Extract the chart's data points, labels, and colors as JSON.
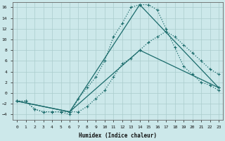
{
  "xlabel": "Humidex (Indice chaleur)",
  "bg_color": "#cce8ea",
  "grid_color": "#aacccc",
  "line_color": "#1a6b6b",
  "xlim": [
    -0.5,
    23.5
  ],
  "ylim": [
    -5,
    17
  ],
  "yticks": [
    -4,
    -2,
    0,
    2,
    4,
    6,
    8,
    10,
    12,
    14,
    16
  ],
  "xticks": [
    0,
    1,
    2,
    3,
    4,
    5,
    6,
    7,
    8,
    9,
    10,
    11,
    12,
    13,
    14,
    15,
    16,
    17,
    18,
    19,
    20,
    21,
    22,
    23
  ],
  "curve1_x": [
    0,
    1,
    2,
    3,
    4,
    5,
    6,
    7,
    8,
    9,
    10,
    11,
    12,
    13,
    14,
    15,
    16,
    17,
    18,
    19,
    20,
    21,
    22,
    23
  ],
  "curve1_y": [
    -1.5,
    -1.5,
    -3,
    -3.5,
    -3.5,
    -3.5,
    -4,
    -1,
    1,
    3,
    6,
    10.5,
    13,
    16,
    16.5,
    16.5,
    15.5,
    12,
    8.5,
    5,
    3.5,
    2,
    1.5,
    0.5
  ],
  "curve2_x": [
    0,
    1,
    2,
    3,
    4,
    5,
    6,
    7,
    8,
    9,
    10,
    11,
    12,
    13,
    14,
    15,
    16,
    17,
    18,
    19,
    20,
    21,
    22,
    23
  ],
  "curve2_y": [
    -1.5,
    -1.5,
    -3,
    -3.5,
    -3.5,
    -3.5,
    -3.5,
    -3.5,
    -2.5,
    -1,
    0.5,
    3,
    5.5,
    6.5,
    8,
    9.5,
    10.5,
    11.5,
    10.5,
    9,
    7.5,
    6,
    4.5,
    3.5
  ],
  "line1_x": [
    0,
    6,
    14,
    23
  ],
  "line1_y": [
    -1.5,
    -3.5,
    16.5,
    1.0
  ],
  "line2_x": [
    0,
    6,
    14,
    23
  ],
  "line2_y": [
    -1.5,
    -3.5,
    8.0,
    1.0
  ]
}
